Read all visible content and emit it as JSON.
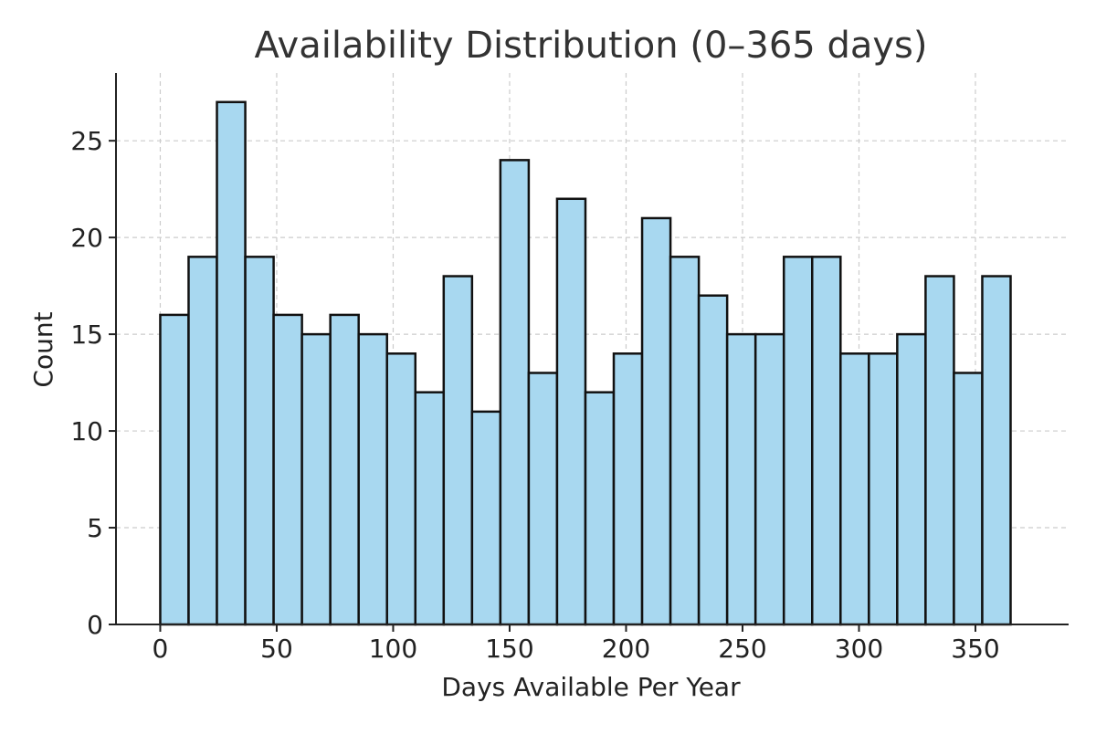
{
  "chart_data": {
    "type": "bar",
    "title": "Availability Distribution (0–365 days)",
    "xlabel": "Days Available Per Year",
    "ylabel": "Count",
    "xlim": [
      -19,
      390
    ],
    "ylim": [
      0,
      28.5
    ],
    "bin_start": 0,
    "bin_width": 12.17,
    "values": [
      16,
      19,
      27,
      19,
      16,
      15,
      16,
      15,
      14,
      12,
      18,
      11,
      24,
      13,
      22,
      12,
      14,
      21,
      19,
      17,
      15,
      15,
      19,
      19,
      14,
      14,
      15,
      18,
      13,
      18
    ],
    "x_ticks": [
      0,
      50,
      100,
      150,
      200,
      250,
      300,
      350
    ],
    "y_ticks": [
      0,
      5,
      10,
      15,
      20,
      25
    ],
    "grid": true,
    "bar_color": "#a8d8f0",
    "edge_color": "#111111"
  }
}
